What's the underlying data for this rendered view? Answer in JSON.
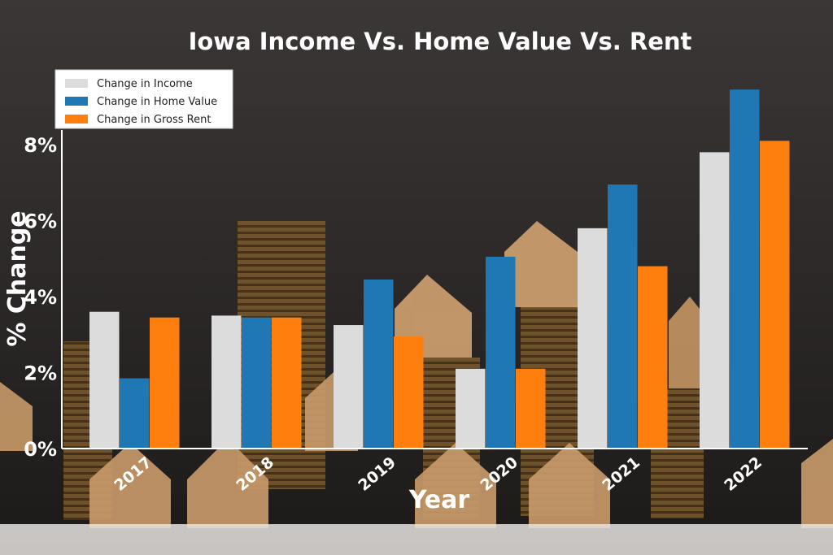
{
  "colors": {
    "income": "#dcdcdc",
    "home_value": "#1f77b4",
    "gross_rent": "#ff7f0e",
    "text": "#ffffff",
    "background_top": "#3b3736",
    "background_bottom": "#1c1a19"
  },
  "chart_data": {
    "type": "bar",
    "title": "Iowa Income Vs.  Home Value Vs. Rent",
    "xlabel": "Year",
    "ylabel": "% Change",
    "categories": [
      "2017",
      "2018",
      "2019",
      "2020",
      "2021",
      "2022"
    ],
    "ylim": [
      0,
      9.5
    ],
    "yticks": [
      "0%",
      "2%",
      "4%",
      "6%",
      "8%"
    ],
    "ytick_values": [
      0,
      2,
      4,
      6,
      8
    ],
    "grid": false,
    "legend_position": "top-left",
    "series": [
      {
        "key": "income",
        "name": "Change in Income",
        "values": [
          3.6,
          3.5,
          3.25,
          2.1,
          5.8,
          7.8
        ]
      },
      {
        "key": "home_value",
        "name": "Change in Home Value",
        "values": [
          1.85,
          3.45,
          4.45,
          5.05,
          6.95,
          9.45
        ]
      },
      {
        "key": "gross_rent",
        "name": "Change in Gross Rent",
        "values": [
          3.45,
          3.45,
          2.95,
          2.1,
          4.8,
          8.1
        ]
      }
    ]
  }
}
